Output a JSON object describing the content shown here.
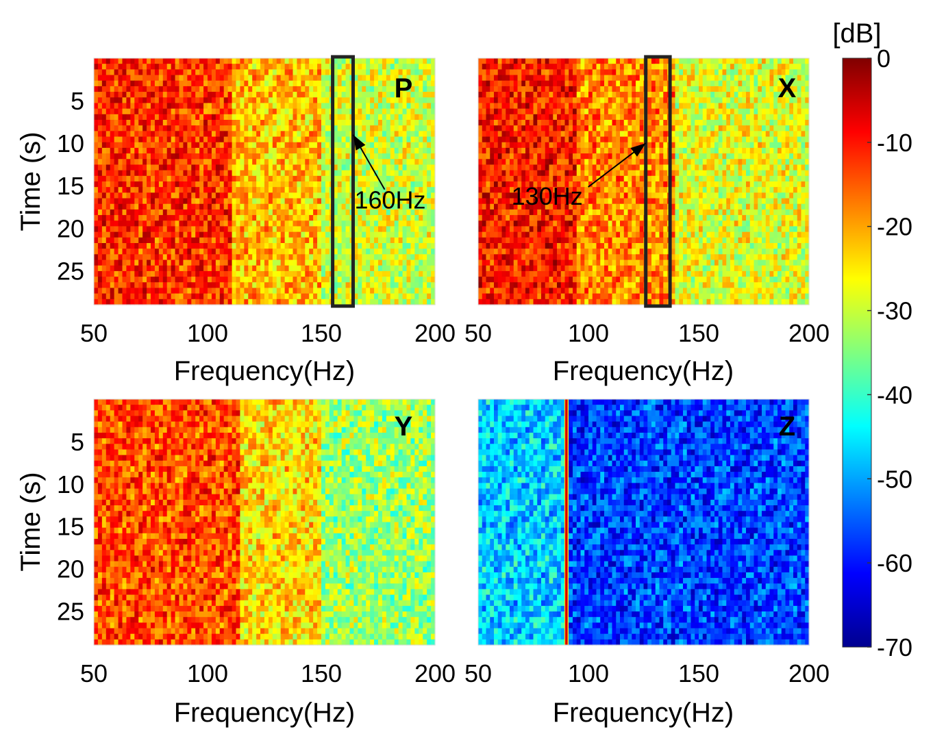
{
  "chart_data": [
    {
      "type": "heatmap",
      "panel": "P",
      "xlabel": "Frequency(Hz)",
      "ylabel": "Time (s)",
      "xlim": [
        50,
        200
      ],
      "ylim": [
        0,
        29
      ],
      "xticks": [
        "50",
        "100",
        "150",
        "200"
      ],
      "yticks": [
        "5",
        "10",
        "15",
        "20",
        "25"
      ],
      "annotation": {
        "text": "160Hz",
        "box_freq_range": [
          155,
          164
        ],
        "arrow_target": {
          "freq": 164,
          "time": 9
        }
      },
      "bands": [
        [
          50,
          110,
          -12
        ],
        [
          110,
          150,
          -22
        ],
        [
          150,
          200,
          -29
        ]
      ],
      "lines": []
    },
    {
      "type": "heatmap",
      "panel": "X",
      "xlabel": "Frequency(Hz)",
      "ylabel": "",
      "xlim": [
        50,
        200
      ],
      "ylim": [
        0,
        29
      ],
      "xticks": [
        "50",
        "100",
        "150",
        "200"
      ],
      "yticks": [],
      "annotation": {
        "text": "130Hz",
        "box_freq_range": [
          126,
          137
        ],
        "arrow_target": {
          "freq": 126,
          "time": 10
        }
      },
      "bands": [
        [
          50,
          95,
          -10
        ],
        [
          95,
          140,
          -18
        ],
        [
          140,
          200,
          -28
        ]
      ],
      "lines": []
    },
    {
      "type": "heatmap",
      "panel": "Y",
      "xlabel": "Frequency(Hz)",
      "ylabel": "Time (s)",
      "xlim": [
        50,
        200
      ],
      "ylim": [
        0,
        29
      ],
      "xticks": [
        "50",
        "100",
        "150",
        "200"
      ],
      "yticks": [
        "5",
        "10",
        "15",
        "20",
        "25"
      ],
      "annotation": null,
      "bands": [
        [
          50,
          115,
          -14
        ],
        [
          115,
          150,
          -24
        ],
        [
          150,
          200,
          -33
        ]
      ],
      "lines": []
    },
    {
      "type": "heatmap",
      "panel": "Z",
      "xlabel": "Frequency(Hz)",
      "ylabel": "",
      "xlim": [
        50,
        200
      ],
      "ylim": [
        0,
        29
      ],
      "xticks": [
        "50",
        "100",
        "150",
        "200"
      ],
      "yticks": [],
      "annotation": null,
      "bands": [
        [
          50,
          90,
          -47
        ],
        [
          90,
          200,
          -57
        ]
      ],
      "lines": [
        {
          "freq": 90,
          "value": -5
        }
      ]
    }
  ],
  "colorbar": {
    "unit": "[dB]",
    "range": [
      -70,
      0
    ],
    "ticks": [
      "0",
      "-10",
      "-20",
      "-30",
      "-40",
      "-50",
      "-60",
      "-70"
    ],
    "colormap": "jet"
  }
}
